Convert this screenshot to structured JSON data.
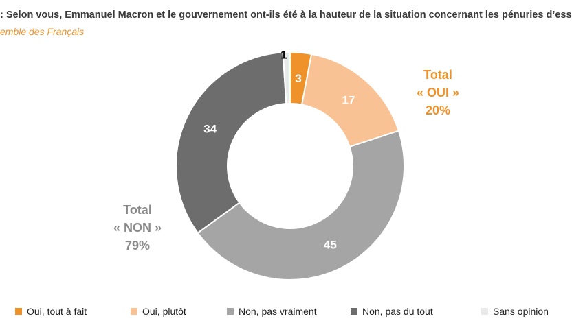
{
  "header": {
    "question": ": Selon vous, Emmanuel Macron et le gouvernement ont-ils été à la hauteur de la situation concernant les pénuries d’esse",
    "base": "emble des Français"
  },
  "totals": {
    "oui": {
      "line1": "Total",
      "line2": "« OUI »",
      "line3": "20%"
    },
    "non": {
      "line1": "Total",
      "line2": "« NON »",
      "line3": "79%"
    }
  },
  "chart_data": {
    "type": "pie",
    "style": "donut",
    "title": "",
    "start": "top",
    "direction": "clockwise",
    "slices": [
      {
        "label": "Oui, tout à fait",
        "value": 3,
        "color": "#f0922a",
        "label_color": "#ffffff"
      },
      {
        "label": "Oui, plutôt",
        "value": 17,
        "color": "#f9c294",
        "label_color": "#ffffff"
      },
      {
        "label": "Non, pas vraiment",
        "value": 45,
        "color": "#a5a5a5",
        "label_color": "#ffffff"
      },
      {
        "label": "Non, pas du tout",
        "value": 34,
        "color": "#6d6d6d",
        "label_color": "#ffffff"
      },
      {
        "label": "Sans opinion",
        "value": 1,
        "color": "#e9e9e9",
        "label_color": "#000000"
      }
    ],
    "legend_position": "bottom"
  }
}
